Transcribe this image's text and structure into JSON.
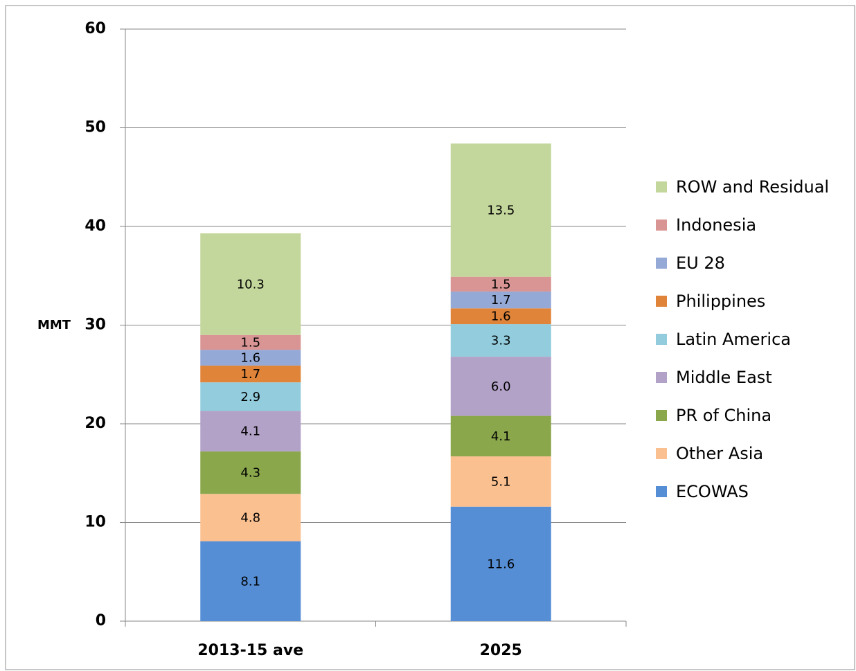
{
  "chart_data": {
    "type": "stacked_bar",
    "y_label": "MMT",
    "categories": [
      "2013-15 ave",
      "2025"
    ],
    "series": [
      {
        "name": "ECOWAS",
        "color": "#558ed5",
        "values": [
          8.1,
          11.6
        ]
      },
      {
        "name": "Other Asia",
        "color": "#fac090",
        "values": [
          4.8,
          5.1
        ]
      },
      {
        "name": "PR of China",
        "color": "#8aa74c",
        "values": [
          4.3,
          4.1
        ]
      },
      {
        "name": "Middle East",
        "color": "#b3a2c7",
        "values": [
          4.1,
          6.0
        ],
        "value_labels": [
          "4.1",
          "6.0"
        ]
      },
      {
        "name": "Latin America",
        "color": "#93cddd",
        "values": [
          2.9,
          3.3
        ]
      },
      {
        "name": "Philippines",
        "color": "#e0843a",
        "values": [
          1.7,
          1.6
        ]
      },
      {
        "name": "EU 28",
        "color": "#95a9d6",
        "values": [
          1.6,
          1.7
        ]
      },
      {
        "name": "Indonesia",
        "color": "#d99594",
        "values": [
          1.5,
          1.5
        ]
      },
      {
        "name": "ROW and Residual",
        "color": "#c3d69b",
        "values": [
          10.3,
          13.5
        ]
      }
    ],
    "ylim": [
      0,
      60
    ],
    "yticks": [
      0,
      10,
      20,
      30,
      40,
      50,
      60
    ],
    "grid": true,
    "legend": "right"
  }
}
